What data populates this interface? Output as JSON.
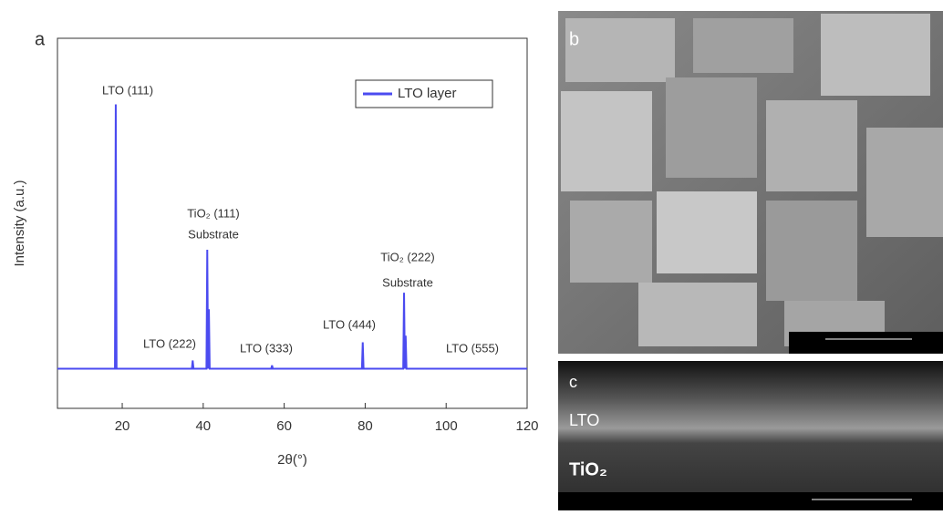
{
  "chart_data": {
    "type": "line",
    "panel_label": "a",
    "x_label": "2θ(°)",
    "y_label": "Intensity (a.u.)",
    "xlim": [
      4,
      120
    ],
    "ylim": [
      -12,
      100
    ],
    "xticks": [
      20,
      40,
      60,
      80,
      100,
      120
    ],
    "legend": "upper right",
    "series": [
      {
        "name": "LTO layer",
        "color": "#4b4bf0",
        "x": [
          4,
          18.2,
          18.4,
          18.6,
          37.2,
          37.4,
          37.6,
          40.8,
          41.0,
          41.2,
          41.4,
          41.6,
          56.8,
          57.0,
          57.2,
          79.2,
          79.4,
          79.6,
          89.4,
          89.6,
          89.8,
          90.0,
          90.2,
          120
        ],
        "values": [
          0,
          0,
          80,
          0,
          0,
          2.5,
          0,
          0,
          36,
          0,
          18,
          0,
          0,
          1,
          0,
          0,
          8,
          0,
          0,
          23,
          0,
          10,
          0,
          0
        ]
      }
    ],
    "annotations": [
      "LTO (111)",
      "LTO (222)",
      "TiO₂ (111)",
      "Substrate",
      "LTO (333)",
      "LTO (444)",
      "TiO₂ (222)",
      "Substrate",
      "LTO (555)"
    ]
  },
  "images": [
    {
      "label": "b"
    },
    {
      "label": "c",
      "layers": [
        "LTO",
        "TiO₂"
      ]
    }
  ]
}
